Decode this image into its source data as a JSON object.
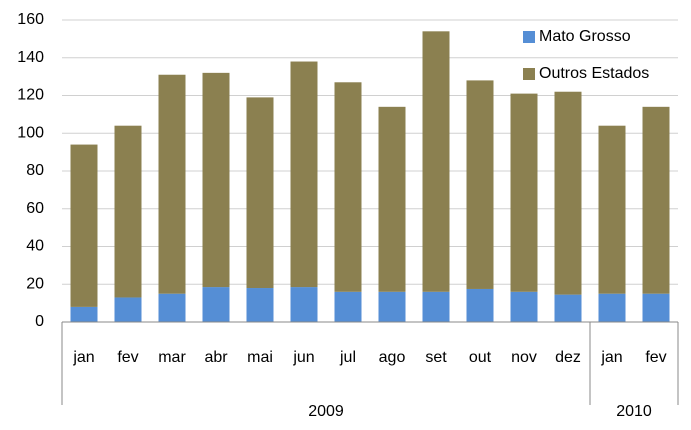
{
  "chart_data": {
    "type": "bar",
    "stacked": true,
    "groups": [
      {
        "label": "2009",
        "categories": [
          "jan",
          "fev",
          "mar",
          "abr",
          "mai",
          "jun",
          "jul",
          "ago",
          "set",
          "out",
          "nov",
          "dez"
        ]
      },
      {
        "label": "2010",
        "categories": [
          "jan",
          "fev"
        ]
      }
    ],
    "series": [
      {
        "name": "Mato Grosso",
        "color": "#558ed5",
        "values": [
          8,
          13,
          15,
          18.5,
          18,
          18.5,
          16,
          16,
          16,
          17.5,
          16,
          14.5,
          15,
          15
        ]
      },
      {
        "name": "Outros Estados",
        "color": "#8b8050",
        "values": [
          86,
          91,
          116,
          113.5,
          101,
          119.5,
          111,
          98,
          138,
          110.5,
          105,
          107.5,
          89,
          99
        ]
      }
    ],
    "ylim": [
      0,
      160
    ],
    "yticks": [
      0,
      20,
      40,
      60,
      80,
      100,
      120,
      140,
      160
    ],
    "grid": true,
    "legend": "top-right"
  }
}
